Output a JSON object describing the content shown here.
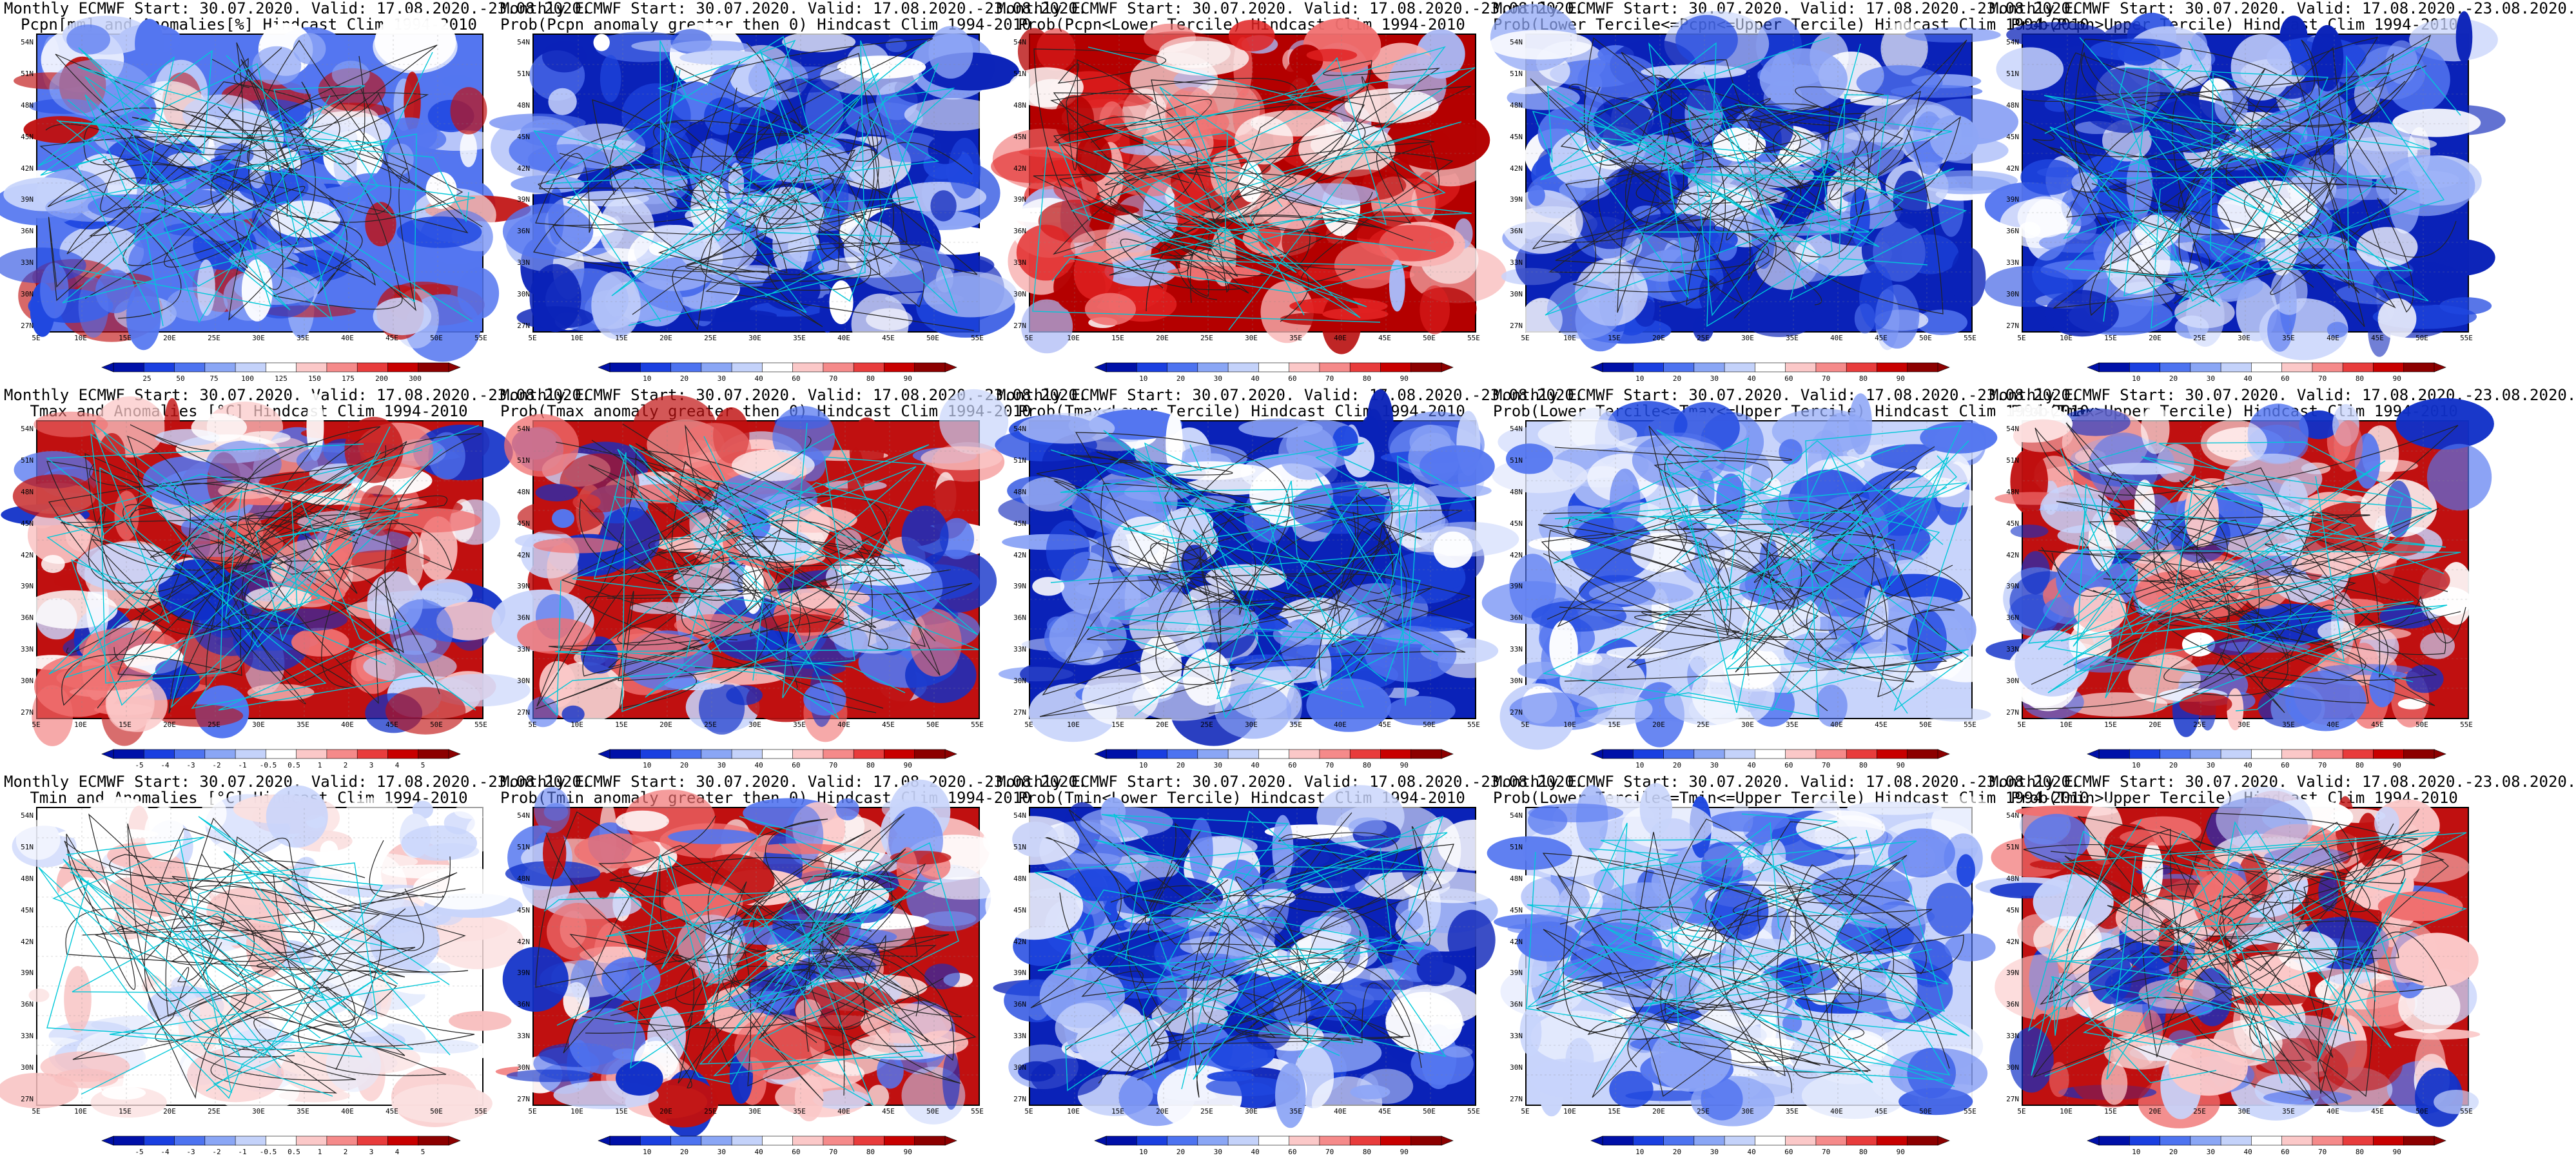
{
  "lat_labels": [
    "54N",
    "51N",
    "48N",
    "45N",
    "42N",
    "39N",
    "36N",
    "33N",
    "30N",
    "27N"
  ],
  "lon_labels": [
    "5E",
    "10E",
    "15E",
    "20E",
    "25E",
    "30E",
    "35E",
    "40E",
    "45E",
    "50E",
    "55E"
  ],
  "panels": [
    {
      "title1": "Monthly ECMWF Start: 30.07.2020. Valid: 17.08.2020.-23.08.2020.",
      "title2": "Pcpn[mm] and Anomalies[%] Hindcast Clim 1994-2010",
      "scheme": "pcpn",
      "ticks": [
        "25",
        "50",
        "75",
        "100",
        "125",
        "150",
        "175",
        "200",
        "300"
      ]
    },
    {
      "title1": "Monthly ECMWF Start: 30.07.2020. Valid: 17.08.2020.-23.08.2020.",
      "title2": "Prob(Pcpn anomaly greater then 0) Hindcast Clim 1994-2010",
      "scheme": "blue",
      "ticks": [
        "10",
        "20",
        "30",
        "40",
        "60",
        "70",
        "80",
        "90"
      ]
    },
    {
      "title1": "Monthly ECMWF Start: 30.07.2020. Valid: 17.08.2020.-23.08.2020.",
      "title2": "Prob(Pcpn<Lower Tercile) Hindcast Clim 1994-2010",
      "scheme": "red",
      "ticks": [
        "10",
        "20",
        "30",
        "40",
        "60",
        "70",
        "80",
        "90"
      ]
    },
    {
      "title1": "Monthly ECMWF Start: 30.07.2020. Valid: 17.08.2020.-23.08.2020.",
      "title2": "Prob(Lower Tercile<=Pcpn<=Upper Tercile) Hindcast Clim 1994-2010",
      "scheme": "blue",
      "ticks": [
        "10",
        "20",
        "30",
        "40",
        "60",
        "70",
        "80",
        "90"
      ]
    },
    {
      "title1": "Monthly ECMWF Start: 30.07.2020. Valid: 17.08.2020.-23.08.2020.",
      "title2": "Prob(Pcpn>Upper Tercile) Hindcast Clim 1994-2010",
      "scheme": "blue",
      "ticks": [
        "10",
        "20",
        "30",
        "40",
        "60",
        "70",
        "80",
        "90"
      ]
    },
    {
      "title1": "Monthly ECMWF Start: 30.07.2020. Valid: 17.08.2020.-23.08.2020.",
      "title2": "Tmax and Anomalies [°C] Hindcast Clim 1994-2010",
      "scheme": "mixed",
      "ticks": [
        "-5",
        "-4",
        "-3",
        "-2",
        "-1",
        "-0.5",
        "0.5",
        "1",
        "2",
        "3",
        "4",
        "5"
      ]
    },
    {
      "title1": "Monthly ECMWF Start: 30.07.2020. Valid: 17.08.2020.-23.08.2020.",
      "title2": "Prob(Tmax anomaly greater then 0) Hindcast Clim 1994-2010",
      "scheme": "mixed",
      "ticks": [
        "10",
        "20",
        "30",
        "40",
        "60",
        "70",
        "80",
        "90"
      ]
    },
    {
      "title1": "Monthly ECMWF Start: 30.07.2020. Valid: 17.08.2020.-23.08.2020.",
      "title2": "Prob(Tmax<Lower Tercile) Hindcast Clim 1994-2010",
      "scheme": "blue",
      "ticks": [
        "10",
        "20",
        "30",
        "40",
        "60",
        "70",
        "80",
        "90"
      ]
    },
    {
      "title1": "Monthly ECMWF Start: 30.07.2020. Valid: 17.08.2020.-23.08.2020.",
      "title2": "Prob(Lower Tercile<=Tmax<=Upper Tercile) Hindcast Clim 1994-2010",
      "scheme": "lightblue",
      "ticks": [
        "10",
        "20",
        "30",
        "40",
        "60",
        "70",
        "80",
        "90"
      ]
    },
    {
      "title1": "Monthly ECMWF Start: 30.07.2020. Valid: 17.08.2020.-23.08.2020.",
      "title2": "Prob(Tmax>Upper Tercile) Hindcast Clim 1994-2010",
      "scheme": "mixed",
      "ticks": [
        "10",
        "20",
        "30",
        "40",
        "60",
        "70",
        "80",
        "90"
      ]
    },
    {
      "title1": "Monthly ECMWF Start: 30.07.2020. Valid: 17.08.2020.-23.08.2020.",
      "title2": "Tmin and Anomalies [°C] Hindcast Clim 1994-2010",
      "scheme": "light",
      "ticks": [
        "-5",
        "-4",
        "-3",
        "-2",
        "-1",
        "-0.5",
        "0.5",
        "1",
        "2",
        "3",
        "4",
        "5"
      ]
    },
    {
      "title1": "Monthly ECMWF Start: 30.07.2020. Valid: 17.08.2020.-23.08.2020.",
      "title2": "Prob(Tmin anomaly greater then 0) Hindcast Clim 1994-2010",
      "scheme": "mixed",
      "ticks": [
        "10",
        "20",
        "30",
        "40",
        "60",
        "70",
        "80",
        "90"
      ]
    },
    {
      "title1": "Monthly ECMWF Start: 30.07.2020. Valid: 17.08.2020.-23.08.2020.",
      "title2": "Prob(Tmin<Lower Tercile) Hindcast Clim 1994-2010",
      "scheme": "blue",
      "ticks": [
        "10",
        "20",
        "30",
        "40",
        "60",
        "70",
        "80",
        "90"
      ]
    },
    {
      "title1": "Monthly ECMWF Start: 30.07.2020. Valid: 17.08.2020.-23.08.2020.",
      "title2": "Prob(Lower Tercile<=Tmin<=Upper Tercile) Hindcast Clim 1994-2010",
      "scheme": "lightblue",
      "ticks": [
        "10",
        "20",
        "30",
        "40",
        "60",
        "70",
        "80",
        "90"
      ]
    },
    {
      "title1": "Monthly ECMWF Start: 30.07.2020. Valid: 17.08.2020.-23.08.2020.",
      "title2": "Prob(Tmin>Upper Tercile) Hindcast Clim 1994-2010",
      "scheme": "mixed",
      "ticks": [
        "10",
        "20",
        "30",
        "40",
        "60",
        "70",
        "80",
        "90"
      ]
    }
  ],
  "colorbar_colors": [
    "#0010a8",
    "#1a3fe0",
    "#4d73f0",
    "#8aa6f5",
    "#c4d2fa",
    "#ffffff",
    "#fbc8c8",
    "#f58a8a",
    "#e83c3c",
    "#c80000",
    "#8c0000"
  ],
  "scheme_colors": {
    "blue": [
      "#0a22b8",
      "#2048e0",
      "#5476f0",
      "#8ea6f6",
      "#c8d4fb",
      "#ffffff"
    ],
    "red": [
      "#b40000",
      "#e02020",
      "#f07070",
      "#f8b4b4",
      "#ffffff",
      "#aab8f5"
    ],
    "mixed": [
      "#c01010",
      "#f07070",
      "#fbc8c8",
      "#ffffff",
      "#c8d4fb",
      "#5476f0",
      "#1030c8"
    ],
    "lightblue": [
      "#c8d4fb",
      "#8ea6f6",
      "#ffffff",
      "#5476f0",
      "#e4eafd",
      "#2048e0"
    ],
    "light": [
      "#ffffff",
      "#fbe0e0",
      "#e4eafd",
      "#c8d4fb",
      "#f8c0c0",
      "#ffffff"
    ],
    "pcpn": [
      "#5476f0",
      "#8ea6f6",
      "#c8d4fb",
      "#2048e0",
      "#ffffff",
      "#c01010"
    ]
  }
}
